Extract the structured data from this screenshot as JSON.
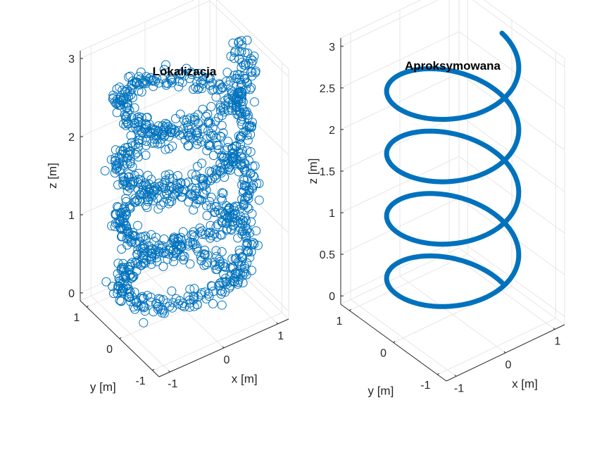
{
  "chart_data": [
    {
      "type": "scatter",
      "title": "Lokalizacja",
      "xlabel": "x [m]",
      "ylabel": "y [m]",
      "zlabel": "z [m]",
      "xticks": [
        "-1",
        "0",
        "1"
      ],
      "yticks": [
        "-1",
        "0",
        "1"
      ],
      "zticks": [
        "0",
        "1",
        "2",
        "3"
      ],
      "xlim": [
        -1.2,
        1.2
      ],
      "ylim": [
        -1.2,
        1.2
      ],
      "zlim": [
        -0.1,
        3.1
      ],
      "grid": true,
      "marker": "circle",
      "series": [
        {
          "color": "#0072BD",
          "helix": {
            "turns": 4,
            "radius": 1.0,
            "z_start": 0.0,
            "z_end": 3.0,
            "noise_sd": 0.08
          },
          "point_count": 1200
        }
      ]
    },
    {
      "type": "line",
      "title": "Aproksymowana",
      "xlabel": "x [m]",
      "ylabel": "y [m]",
      "zlabel": "z [m]",
      "xticks": [
        "-1",
        "0",
        "1"
      ],
      "yticks": [
        "-1",
        "0",
        "1"
      ],
      "zticks": [
        "0",
        "0.5",
        "1",
        "1.5",
        "2",
        "2.5",
        "3"
      ],
      "xlim": [
        -1.2,
        1.2
      ],
      "ylim": [
        -1.2,
        1.2
      ],
      "zlim": [
        -0.1,
        3.1
      ],
      "grid": true,
      "series": [
        {
          "color": "#0072BD",
          "helix": {
            "turns": 4,
            "radius": 1.0,
            "z_start": 0.0,
            "z_end": 3.0
          }
        }
      ]
    }
  ]
}
